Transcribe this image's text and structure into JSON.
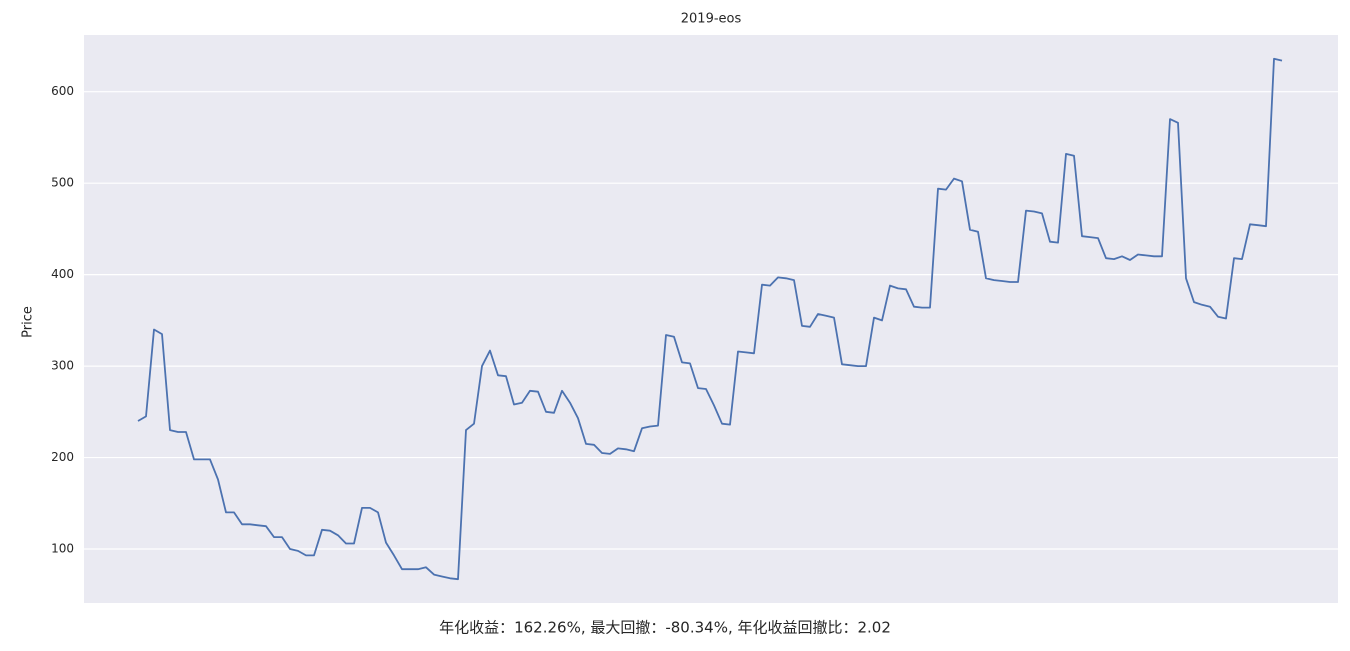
{
  "chart_data": {
    "type": "line",
    "title": "2019-eos",
    "ylabel": "Price",
    "annotation": "年化收益：162.26%, 最大回撤：-80.34%, 年化收益回撤比：2.02",
    "series": [
      {
        "name": "eos",
        "color": "#4c72b0",
        "values": [
          240,
          245,
          340,
          335,
          230,
          228,
          228,
          198,
          198,
          198,
          176,
          140,
          140,
          127,
          127,
          126,
          125,
          113,
          113,
          100,
          98,
          93,
          93,
          121,
          120,
          115,
          106,
          106,
          145,
          145,
          140,
          107,
          93,
          78,
          78,
          78,
          80,
          72,
          70,
          68,
          67,
          230,
          237,
          300,
          317,
          290,
          289,
          258,
          260,
          273,
          272,
          250,
          249,
          273,
          260,
          243,
          215,
          214,
          205,
          204,
          210,
          209,
          207,
          232,
          234,
          235,
          334,
          332,
          304,
          303,
          276,
          275,
          257,
          237,
          236,
          316,
          315,
          314,
          389,
          388,
          397,
          396,
          394,
          344,
          343,
          357,
          355,
          353,
          302,
          301,
          300,
          300,
          353,
          350,
          388,
          385,
          384,
          365,
          364,
          364,
          494,
          493,
          505,
          502,
          449,
          447,
          396,
          394,
          393,
          392,
          392,
          470,
          469,
          467,
          436,
          435,
          532,
          530,
          442,
          441,
          440,
          418,
          417,
          420,
          416,
          422,
          421,
          420,
          420,
          570,
          566,
          396,
          370,
          367,
          365,
          354,
          352,
          418,
          417,
          455,
          454,
          453,
          636,
          634
        ]
      }
    ],
    "ylim": [
      41,
      662
    ],
    "yticks": [
      100,
      200,
      300,
      400,
      500,
      600
    ],
    "grid": true,
    "background": "#eaeaf2"
  }
}
